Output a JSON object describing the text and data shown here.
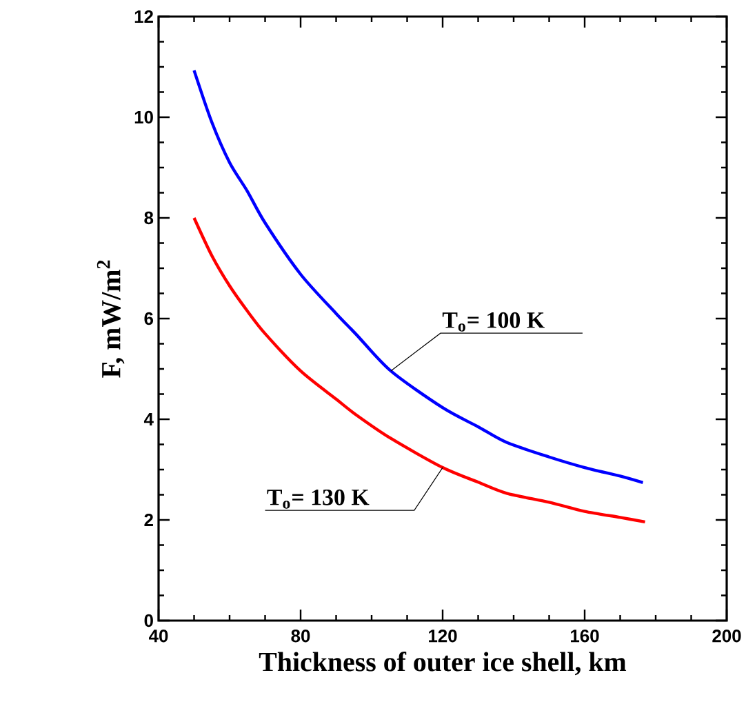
{
  "chart_data": {
    "type": "line",
    "xlabel": "Thickness of outer ice shell, km",
    "ylabel": "F, mW/m$^{2}$",
    "xlim": [
      40,
      200
    ],
    "xticks": [
      40,
      80,
      120,
      160,
      200
    ],
    "ylim": [
      0,
      12
    ],
    "yticks": [
      0,
      2,
      4,
      6,
      8,
      10,
      12
    ],
    "marker": "none",
    "line_style": "solid",
    "series": [
      {
        "color": "#0000ff",
        "x": [
          50,
          55,
          60,
          65,
          70,
          80,
          90,
          95.6,
          105.4,
          120,
          130,
          138,
          150,
          160,
          170,
          176.4
        ],
        "values": [
          10.93,
          9.9,
          9.1,
          8.53,
          7.9,
          6.88,
          6.1,
          5.69,
          4.96,
          4.23,
          3.85,
          3.54,
          3.25,
          3.04,
          2.87,
          2.74
        ]
      },
      {
        "color": "#ff0000",
        "x": [
          50,
          55,
          60,
          65,
          70,
          80,
          90,
          95.6,
          105.4,
          120,
          130,
          138,
          150,
          160,
          170,
          177
        ],
        "values": [
          8.0,
          7.25,
          6.65,
          6.15,
          5.7,
          4.96,
          4.4,
          4.09,
          3.62,
          3.04,
          2.75,
          2.53,
          2.35,
          2.17,
          2.05,
          1.96
        ]
      }
    ],
    "annotations": [
      {
        "text": "T$_{o}$= 100 K",
        "x": 105.4,
        "y": 4.96
      },
      {
        "text": "T$_{o}$= 130 K",
        "x": 120,
        "y": 3.04
      }
    ]
  }
}
